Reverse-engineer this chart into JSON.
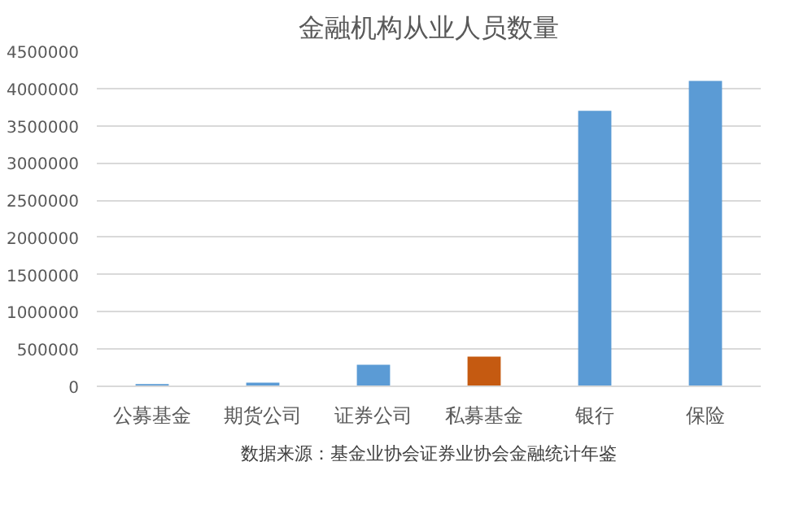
{
  "chart_data": {
    "type": "bar",
    "title": "金融机构从业人员数量",
    "categories": [
      "公募基金",
      "期货公司",
      "证券公司",
      "私募基金",
      "银行",
      "保险"
    ],
    "values": [
      30000,
      50000,
      290000,
      400000,
      3700000,
      4100000
    ],
    "colors": [
      "#5b9bd5",
      "#5b9bd5",
      "#5b9bd5",
      "#c55a11",
      "#5b9bd5",
      "#5b9bd5"
    ],
    "ylim": [
      0,
      4500000
    ],
    "yticks": [
      0,
      500000,
      1000000,
      1500000,
      2000000,
      2500000,
      3000000,
      3500000,
      4000000,
      4500000
    ],
    "grid": "y",
    "annotations": [
      "数据来源：基金业协会证券业协会金融统计年鉴"
    ]
  }
}
